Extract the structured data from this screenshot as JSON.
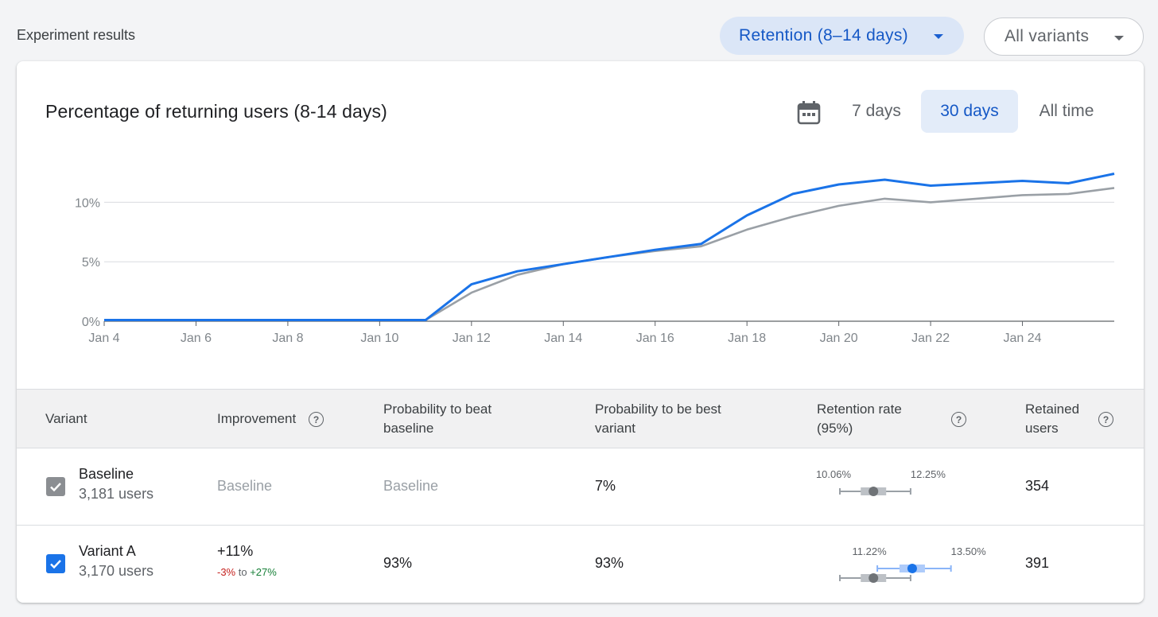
{
  "header": {
    "title": "Experiment results",
    "metric_dropdown": "Retention (8–14 days)",
    "variants_dropdown": "All variants"
  },
  "chart_card": {
    "title": "Percentage of returning users (8-14 days)",
    "ranges": [
      "7 days",
      "30 days",
      "All time"
    ],
    "selected_range": "30 days"
  },
  "colors": {
    "accent": "#1a73e8",
    "baseline": "#9aa0a6"
  },
  "chart_data": {
    "type": "line",
    "title": "Percentage of returning users (8-14 days)",
    "x": [
      "Jan 4",
      "Jan 5",
      "Jan 6",
      "Jan 7",
      "Jan 8",
      "Jan 9",
      "Jan 10",
      "Jan 11",
      "Jan 12",
      "Jan 13",
      "Jan 14",
      "Jan 15",
      "Jan 16",
      "Jan 17",
      "Jan 18",
      "Jan 19",
      "Jan 20",
      "Jan 21",
      "Jan 22",
      "Jan 23",
      "Jan 24",
      "Jan 25",
      "Jan 26"
    ],
    "x_tick_labels": [
      "Jan 4",
      "Jan 6",
      "Jan 8",
      "Jan 10",
      "Jan 12",
      "Jan 14",
      "Jan 16",
      "Jan 18",
      "Jan 20",
      "Jan 22",
      "Jan 24"
    ],
    "y_ticks": [
      0,
      5,
      10
    ],
    "y_tick_labels": [
      "0%",
      "5%",
      "10%"
    ],
    "ylim": [
      0,
      12.5
    ],
    "grid": true,
    "series": [
      {
        "name": "Baseline",
        "color": "#9aa0a6",
        "values": [
          0.1,
          0.1,
          0.1,
          0.1,
          0.1,
          0.1,
          0.1,
          0.1,
          2.4,
          3.9,
          4.8,
          5.4,
          5.9,
          6.3,
          7.7,
          8.8,
          9.7,
          10.3,
          10.0,
          10.3,
          10.6,
          10.7,
          11.2
        ]
      },
      {
        "name": "Variant A",
        "color": "#1a73e8",
        "values": [
          0.1,
          0.1,
          0.1,
          0.1,
          0.1,
          0.1,
          0.1,
          0.1,
          3.1,
          4.2,
          4.8,
          5.4,
          6.0,
          6.5,
          8.9,
          10.7,
          11.5,
          11.9,
          11.4,
          11.6,
          11.8,
          11.6,
          12.4
        ]
      }
    ]
  },
  "table": {
    "headers": {
      "variant": "Variant",
      "improvement": "Improvement",
      "prob_beat_1": "Probability to beat",
      "prob_beat_2": "baseline",
      "prob_best_1": "Probability to be best",
      "prob_best_2": "variant",
      "retention_1": "Retention rate",
      "retention_2": "(95%)",
      "retained_1": "Retained",
      "retained_2": "users"
    },
    "help_glyph": "?",
    "rows": [
      {
        "name": "Baseline",
        "users": "3,181 users",
        "improvement": "Baseline",
        "prob_beat": "Baseline",
        "prob_best": "7%",
        "ci_low": "10.06%",
        "ci_high": "12.25%",
        "ci_lo_val": 10.06,
        "ci_hi_val": 12.25,
        "ci_point": 11.1,
        "retained": "354"
      },
      {
        "name": "Variant A",
        "users": "3,170 users",
        "improvement": "+11%",
        "improvement_low": "-3%",
        "improvement_to": "to",
        "improvement_high": "+27%",
        "prob_beat": "93%",
        "prob_best": "93%",
        "ci_low": "11.22%",
        "ci_high": "13.50%",
        "ci_lo_val": 11.22,
        "ci_hi_val": 13.5,
        "ci_point": 12.3,
        "retained": "391"
      }
    ]
  }
}
